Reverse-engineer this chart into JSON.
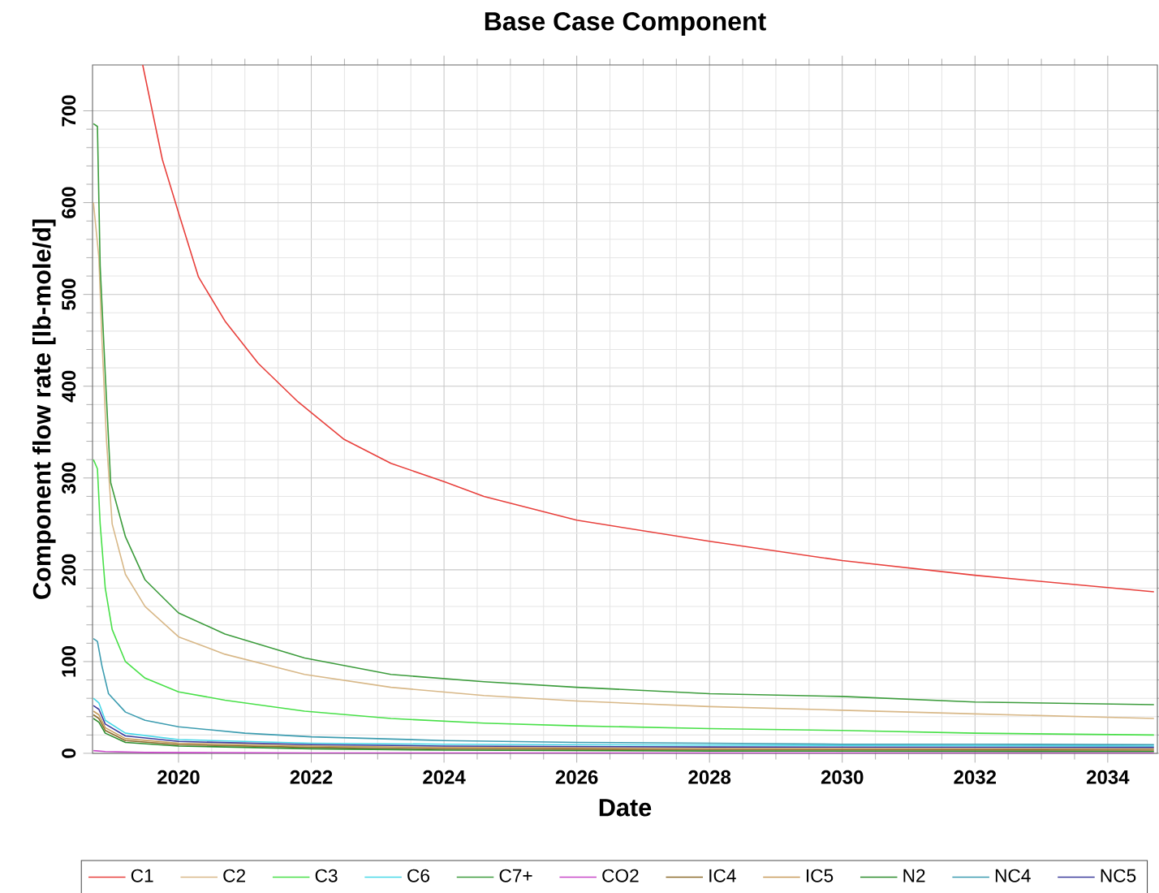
{
  "chart_data": {
    "type": "line",
    "title": "Base Case Component",
    "xlabel": "Date",
    "ylabel": "Component flow rate [lb-mole/d]",
    "xlim": [
      "2018-09-15",
      "2034-10-01"
    ],
    "ylim": [
      0,
      750
    ],
    "xticks": [
      "2020",
      "2022",
      "2024",
      "2026",
      "2028",
      "2030",
      "2032",
      "2034"
    ],
    "yticks": [
      0,
      100,
      200,
      300,
      400,
      500,
      600,
      700
    ],
    "grid": true,
    "legend": "bottom",
    "series": [
      {
        "name": "C1",
        "color": "#e8403c",
        "x": [
          "2019-06-18",
          "2019-10-04",
          "2020-01-01",
          "2020-04-20",
          "2020-09-13",
          "2021-03-15",
          "2021-10-20",
          "2022-07-01",
          "2023-03-15",
          "2024-01-01",
          "2024-08-08",
          "2026-01-01",
          "2028-01-01",
          "2030-01-01",
          "2032-01-01",
          "2034-09-12"
        ],
        "values": [
          750,
          647,
          589,
          519,
          471,
          425,
          383,
          342,
          316,
          296,
          280,
          254,
          231,
          210,
          194,
          176
        ]
      },
      {
        "name": "C2",
        "color": "#d8b888",
        "x": [
          "2018-09-20",
          "2018-10-20",
          "2018-11-06",
          "2018-12-01",
          "2019-01-01",
          "2019-03-15",
          "2019-07-01",
          "2020-01-01",
          "2020-09-13",
          "2021-11-25",
          "2023-03-15",
          "2024-08-08",
          "2026-01-01",
          "2028-01-01",
          "2030-01-01",
          "2032-01-01",
          "2034-09-12"
        ],
        "values": [
          600,
          540,
          450,
          340,
          250,
          195,
          160,
          127,
          108,
          86,
          72,
          63,
          57,
          51,
          47,
          43,
          38
        ]
      },
      {
        "name": "C3",
        "color": "#48e048",
        "x": [
          "2018-09-20",
          "2018-10-12",
          "2018-10-27",
          "2018-11-24",
          "2019-01-01",
          "2019-03-15",
          "2019-07-01",
          "2020-01-01",
          "2020-09-13",
          "2021-11-25",
          "2023-03-15",
          "2024-08-08",
          "2026-01-01",
          "2028-01-01",
          "2030-01-01",
          "2032-01-01",
          "2034-09-12"
        ],
        "values": [
          320,
          310,
          250,
          180,
          135,
          100,
          82,
          67,
          58,
          46,
          38,
          33,
          30,
          27,
          25,
          22,
          20
        ]
      },
      {
        "name": "C6",
        "color": "#48d8e8",
        "x": [
          "2018-09-20",
          "2018-10-20",
          "2018-11-24",
          "2019-03-15",
          "2020-01-01",
          "2022-01-01",
          "2024-01-01",
          "2028-01-01",
          "2034-09-12"
        ],
        "values": [
          60,
          55,
          36,
          22,
          15,
          11,
          10,
          9,
          8
        ]
      },
      {
        "name": "C7+",
        "color": "#3c9c3c",
        "x": [
          "2018-09-20",
          "2018-10-12",
          "2018-10-27",
          "2018-11-24",
          "2018-12-24",
          "2019-03-15",
          "2019-07-01",
          "2020-01-01",
          "2020-09-13",
          "2021-11-25",
          "2023-03-15",
          "2024-08-08",
          "2026-01-01",
          "2028-01-01",
          "2030-01-01",
          "2032-01-01",
          "2034-09-12"
        ],
        "values": [
          686,
          683,
          531,
          413,
          295,
          236,
          189,
          153,
          130,
          104,
          86,
          78,
          72,
          65,
          62,
          56,
          53
        ]
      },
      {
        "name": "CO2",
        "color": "#c848c8",
        "x": [
          "2018-09-20",
          "2018-11-24",
          "2019-07-01",
          "2022-01-01",
          "2034-09-12"
        ],
        "values": [
          3,
          2,
          1,
          0.5,
          0.5
        ]
      },
      {
        "name": "IC4",
        "color": "#8c6c2c",
        "x": [
          "2018-09-20",
          "2018-10-20",
          "2018-11-24",
          "2019-03-15",
          "2020-01-01",
          "2022-01-01",
          "2024-01-01",
          "2028-01-01",
          "2034-09-12"
        ],
        "values": [
          42,
          38,
          25,
          14,
          9.5,
          6.5,
          5,
          4,
          3.5
        ]
      },
      {
        "name": "IC5",
        "color": "#c89c5c",
        "x": [
          "2018-09-20",
          "2018-10-20",
          "2018-11-24",
          "2019-03-15",
          "2020-01-01",
          "2022-01-01",
          "2024-01-01",
          "2028-01-01",
          "2034-09-12"
        ],
        "values": [
          46,
          42,
          28,
          16,
          11,
          8,
          6.5,
          5.5,
          5
        ]
      },
      {
        "name": "N2",
        "color": "#2c8c2c",
        "x": [
          "2018-09-20",
          "2018-10-20",
          "2018-11-24",
          "2019-03-15",
          "2020-01-01",
          "2022-01-01",
          "2024-01-01",
          "2028-01-01",
          "2034-09-12"
        ],
        "values": [
          38,
          34,
          22,
          12,
          8,
          5,
          3.5,
          2.5,
          2
        ]
      },
      {
        "name": "NC4",
        "color": "#3c9cb0",
        "x": [
          "2018-09-20",
          "2018-10-12",
          "2018-11-06",
          "2018-12-12",
          "2019-03-15",
          "2019-07-01",
          "2020-01-01",
          "2021-01-01",
          "2022-01-01",
          "2024-01-01",
          "2026-01-01",
          "2028-01-01",
          "2030-01-01",
          "2032-01-01",
          "2034-09-12"
        ],
        "values": [
          125,
          122,
          95,
          65,
          45,
          36,
          29,
          22,
          18,
          14,
          12,
          11,
          10,
          10,
          9.5
        ]
      },
      {
        "name": "NC5",
        "color": "#3c3c9c",
        "x": [
          "2018-09-20",
          "2018-10-20",
          "2018-11-24",
          "2019-03-15",
          "2020-01-01",
          "2022-01-01",
          "2024-01-01",
          "2028-01-01",
          "2034-09-12"
        ],
        "values": [
          52,
          48,
          32,
          19,
          13,
          9.5,
          8,
          7,
          6.5
        ]
      }
    ]
  }
}
